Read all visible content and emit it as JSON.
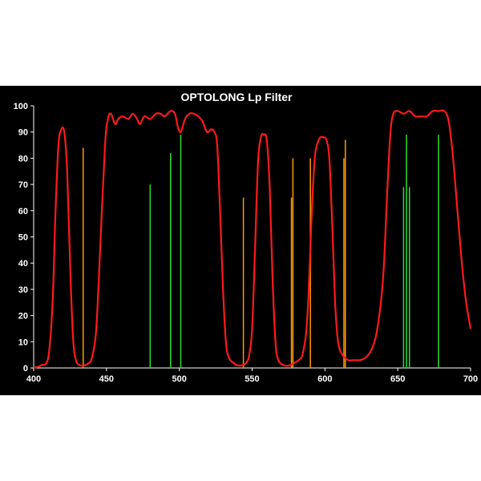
{
  "chart_data": {
    "type": "line",
    "title": "OPTOLONG Lp Filter",
    "xlabel": "",
    "ylabel": "",
    "xlim": [
      400,
      700
    ],
    "ylim": [
      0,
      100
    ],
    "x_ticks": [
      400,
      450,
      500,
      550,
      600,
      650,
      700
    ],
    "y_ticks": [
      0,
      10,
      20,
      30,
      40,
      50,
      60,
      70,
      80,
      90,
      100
    ],
    "grid": false,
    "legend": "none",
    "colors": {
      "background": "#000000",
      "curve": "#ff1a1a",
      "orange_lines": "#ff9900",
      "green_lines": "#33dd33",
      "axes": "#ffffff"
    },
    "series": [
      {
        "type": "line",
        "color": "#ff1a1a",
        "points": [
          [
            400,
            0
          ],
          [
            405,
            1
          ],
          [
            410,
            4
          ],
          [
            413,
            25
          ],
          [
            415,
            60
          ],
          [
            417,
            85
          ],
          [
            419,
            91
          ],
          [
            421,
            90
          ],
          [
            423,
            75
          ],
          [
            425,
            40
          ],
          [
            427,
            12
          ],
          [
            429,
            3
          ],
          [
            432,
            1
          ],
          [
            435,
            1
          ],
          [
            438,
            2
          ],
          [
            440,
            4
          ],
          [
            443,
            15
          ],
          [
            446,
            50
          ],
          [
            449,
            85
          ],
          [
            451,
            95
          ],
          [
            453,
            97
          ],
          [
            456,
            93
          ],
          [
            458,
            95
          ],
          [
            461,
            96
          ],
          [
            465,
            95
          ],
          [
            468,
            97
          ],
          [
            471,
            95
          ],
          [
            473,
            93
          ],
          [
            476,
            96
          ],
          [
            480,
            95
          ],
          [
            484,
            97
          ],
          [
            487,
            97
          ],
          [
            490,
            96
          ],
          [
            494,
            98
          ],
          [
            497,
            97
          ],
          [
            499,
            92
          ],
          [
            501,
            90
          ],
          [
            504,
            95
          ],
          [
            507,
            97
          ],
          [
            510,
            97
          ],
          [
            513,
            96
          ],
          [
            516,
            94
          ],
          [
            519,
            90
          ],
          [
            522,
            91
          ],
          [
            524,
            90
          ],
          [
            526,
            85
          ],
          [
            528,
            60
          ],
          [
            530,
            30
          ],
          [
            532,
            10
          ],
          [
            534,
            4
          ],
          [
            537,
            2
          ],
          [
            540,
            1
          ],
          [
            543,
            1
          ],
          [
            546,
            2
          ],
          [
            548,
            5
          ],
          [
            550,
            15
          ],
          [
            552,
            45
          ],
          [
            554,
            78
          ],
          [
            556,
            88
          ],
          [
            558,
            89
          ],
          [
            560,
            87
          ],
          [
            562,
            70
          ],
          [
            564,
            35
          ],
          [
            566,
            10
          ],
          [
            568,
            3
          ],
          [
            572,
            1
          ],
          [
            576,
            1
          ],
          [
            579,
            2
          ],
          [
            582,
            3
          ],
          [
            585,
            6
          ],
          [
            588,
            20
          ],
          [
            591,
            60
          ],
          [
            593,
            80
          ],
          [
            595,
            86
          ],
          [
            597,
            88
          ],
          [
            599,
            88
          ],
          [
            601,
            87
          ],
          [
            603,
            80
          ],
          [
            605,
            55
          ],
          [
            607,
            25
          ],
          [
            609,
            10
          ],
          [
            612,
            5
          ],
          [
            616,
            3
          ],
          [
            620,
            3
          ],
          [
            624,
            3
          ],
          [
            628,
            4
          ],
          [
            632,
            7
          ],
          [
            636,
            15
          ],
          [
            640,
            35
          ],
          [
            643,
            70
          ],
          [
            645,
            90
          ],
          [
            647,
            97
          ],
          [
            650,
            98
          ],
          [
            654,
            97
          ],
          [
            658,
            98
          ],
          [
            662,
            96
          ],
          [
            666,
            96
          ],
          [
            670,
            96
          ],
          [
            674,
            98
          ],
          [
            678,
            98
          ],
          [
            682,
            98
          ],
          [
            685,
            94
          ],
          [
            688,
            80
          ],
          [
            691,
            60
          ],
          [
            694,
            40
          ],
          [
            697,
            25
          ],
          [
            700,
            15
          ]
        ]
      }
    ],
    "emission_lines": [
      {
        "x": 434,
        "y": 84,
        "color": "#ff9900"
      },
      {
        "x": 480,
        "y": 70,
        "color": "#33dd33"
      },
      {
        "x": 494,
        "y": 82,
        "color": "#33dd33"
      },
      {
        "x": 501,
        "y": 89,
        "color": "#33dd33"
      },
      {
        "x": 544,
        "y": 65,
        "color": "#ff9900"
      },
      {
        "x": 577,
        "y": 65,
        "color": "#ff9900"
      },
      {
        "x": 578,
        "y": 80,
        "color": "#ff9900"
      },
      {
        "x": 590,
        "y": 80,
        "color": "#ff9900"
      },
      {
        "x": 613,
        "y": 80,
        "color": "#ff9900"
      },
      {
        "x": 614,
        "y": 87,
        "color": "#ff9900"
      },
      {
        "x": 654,
        "y": 69,
        "color": "#33dd33"
      },
      {
        "x": 656,
        "y": 89,
        "color": "#33dd33"
      },
      {
        "x": 658,
        "y": 69,
        "color": "#33dd33"
      },
      {
        "x": 678,
        "y": 89,
        "color": "#33dd33"
      }
    ]
  }
}
